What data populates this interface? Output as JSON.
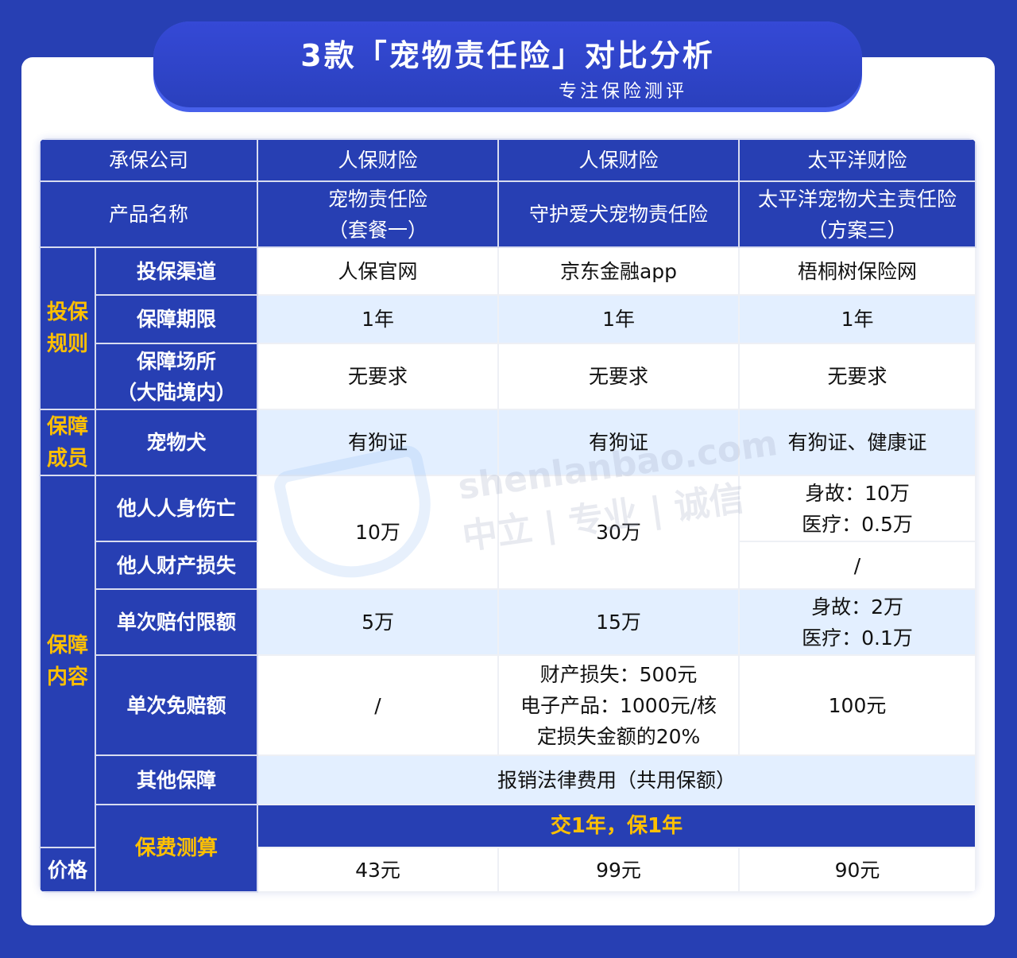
{
  "header": {
    "title": "3款「宠物责任险」对比分析",
    "subtitle": "专注保险测评"
  },
  "table": {
    "company_label": "承保公司",
    "companies": [
      "人保财险",
      "人保财险",
      "太平洋财险"
    ],
    "product_label": "产品名称",
    "products": [
      [
        "宠物责任险",
        "（套餐一）"
      ],
      [
        "守护爱犬宠物责任险",
        ""
      ],
      [
        "太平洋宠物犬主责任险",
        "（方案三）"
      ]
    ],
    "groups": {
      "rules": "投保规则",
      "members": "保障成员",
      "coverage": "保障内容",
      "fee": "保费测算"
    },
    "channel": {
      "label": "投保渠道",
      "values": [
        "人保官网",
        "京东金融app",
        "梧桐树保险网"
      ]
    },
    "term": {
      "label": "保障期限",
      "values": [
        "1年",
        "1年",
        "1年"
      ]
    },
    "place": {
      "label": [
        "保障场所",
        "（大陆境内）"
      ],
      "values": [
        "无要求",
        "无要求",
        "无要求"
      ]
    },
    "dog": {
      "label": "宠物犬",
      "values": [
        "有狗证",
        "有狗证",
        "有狗证、健康证"
      ]
    },
    "injury": {
      "label": "他人人身伤亡",
      "values": [
        "10万",
        "30万"
      ],
      "tp": [
        "身故：10万",
        "医疗：0.5万"
      ]
    },
    "property": {
      "label": "他人财产损失",
      "tp": "/"
    },
    "per_claim": {
      "label": "单次赔付限额",
      "values": [
        "5万",
        "15万"
      ],
      "tp": [
        "身故：2万",
        "医疗：0.1万"
      ]
    },
    "deductible": {
      "label": "单次免赔额",
      "values": [
        "/"
      ],
      "mid": [
        "财产损失：500元",
        "电子产品：1000元/核",
        "定损失金额的20%"
      ],
      "tp": "100元"
    },
    "other": {
      "label": "其他保障",
      "value": "报销法律费用（共用保额）"
    },
    "fee_note": "交1年，保1年",
    "price": {
      "label": "价格",
      "values": [
        "43元",
        "99元",
        "90元"
      ]
    }
  },
  "watermark": {
    "logo": "深蓝保",
    "site": "shenlanbao.com",
    "slogan": "中立 | 专业 | 诚信"
  },
  "colors": {
    "primary": "#273fb3",
    "accent": "#ffc000",
    "alt_row": "#e3efff"
  }
}
